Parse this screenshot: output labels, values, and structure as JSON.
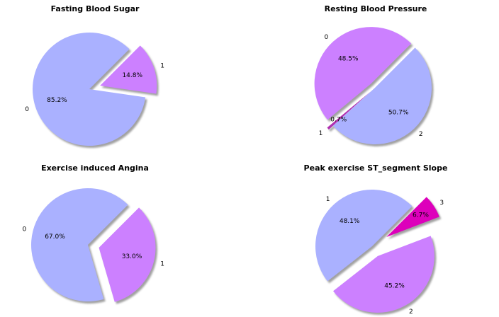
{
  "chart_data": [
    {
      "type": "pie",
      "title": "Fasting Blood Sugar",
      "labels": [
        "0",
        "1"
      ],
      "values": [
        85.2,
        14.8
      ],
      "autopct": [
        "85.2%",
        "14.8%"
      ],
      "colors": [
        "#aab1ff",
        "#cc80ff"
      ],
      "explode": [
        0,
        0.2
      ],
      "shadow": true
    },
    {
      "type": "pie",
      "title": "Resting Blood Pressure",
      "labels": [
        "0",
        "1",
        "2"
      ],
      "values": [
        48.5,
        0.7,
        50.7
      ],
      "autopct": [
        "48.5%",
        "0.7%",
        "50.7%"
      ],
      "colors": [
        "#cc80ff",
        "#b030b0",
        "#aab1ff"
      ],
      "explode": [
        0.1,
        0.1,
        0
      ],
      "shadow": true
    },
    {
      "type": "pie",
      "title": "Exercise induced Angina",
      "labels": [
        "0",
        "1"
      ],
      "values": [
        67.0,
        33.0
      ],
      "autopct": [
        "67.0%",
        "33.0%"
      ],
      "colors": [
        "#aab1ff",
        "#cc80ff"
      ],
      "explode": [
        0,
        0.2
      ],
      "shadow": true
    },
    {
      "type": "pie",
      "title": "Peak exercise ST_segment Slope",
      "labels": [
        "1",
        "2",
        "3"
      ],
      "values": [
        48.1,
        45.2,
        6.7
      ],
      "autopct": [
        "48.1%",
        "45.2%",
        "6.7%"
      ],
      "colors": [
        "#aab1ff",
        "#cc80ff",
        "#dd00bb"
      ],
      "explode": [
        0,
        0.2,
        0.3
      ],
      "shadow": true
    }
  ]
}
